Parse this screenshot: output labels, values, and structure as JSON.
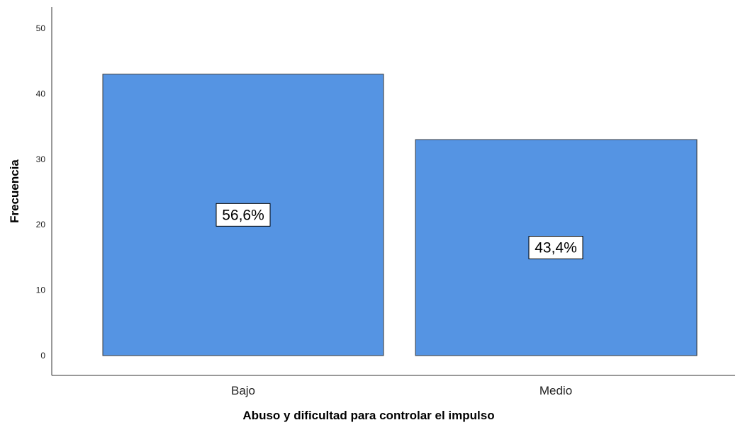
{
  "chart_data": {
    "type": "bar",
    "categories": [
      "Bajo",
      "Medio"
    ],
    "values": [
      43,
      33
    ],
    "data_labels": [
      "56,6%",
      "43,4%"
    ],
    "xlabel": "Abuso y dificultad para controlar el impulso",
    "ylabel": "Frecuencia",
    "ylim": [
      0,
      50
    ],
    "yticks": [
      "0",
      "10",
      "20",
      "30",
      "40",
      "50"
    ],
    "grid": false,
    "bar_color": "#5594e3",
    "bar_edge_color": "#3a3a3a"
  }
}
